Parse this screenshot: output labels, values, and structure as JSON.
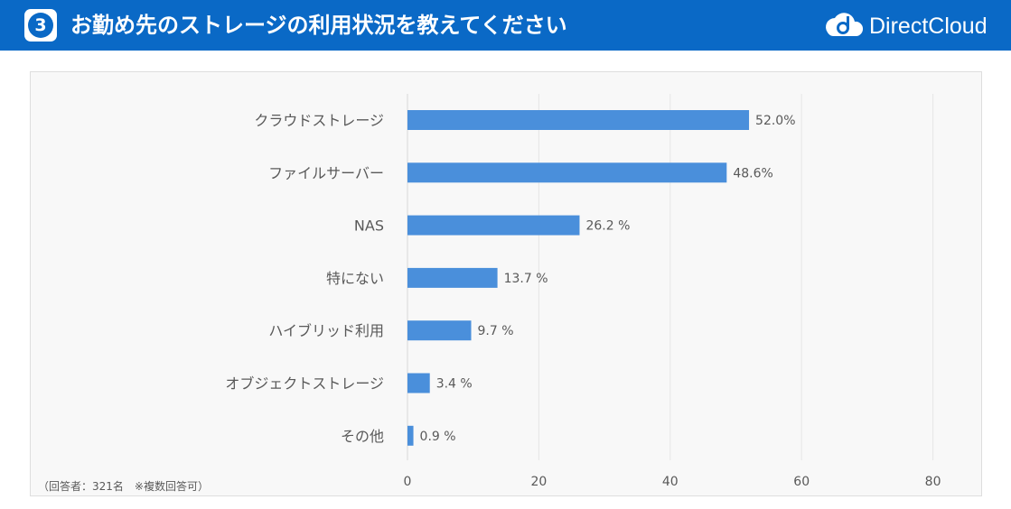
{
  "header": {
    "question_number": "3",
    "title": "お勤め先のストレージの利用状況を教えてください",
    "logo_text": "DirectCloud",
    "logo_icon": "cloud-d-logo-icon",
    "background_color": "#0a69c6"
  },
  "note": "（回答者：321名　※複数回答可）",
  "chart_data": {
    "type": "bar",
    "orientation": "horizontal",
    "title": "",
    "xlabel": "",
    "ylabel": "",
    "categories": [
      "クラウドストレージ",
      "ファイルサーバー",
      "NAS",
      "特にない",
      "ハイブリッド利用",
      "オブジェクトストレージ",
      "その他"
    ],
    "values": [
      52.0,
      48.6,
      26.2,
      13.7,
      9.7,
      3.4,
      0.9
    ],
    "data_labels": [
      "52.0%",
      "48.6%",
      "26.2 %",
      "13.7 %",
      "9.7 %",
      "3.4 %",
      "0.9 %"
    ],
    "xlim": [
      0,
      80
    ],
    "ticks": [
      0,
      20,
      40,
      60,
      80
    ],
    "tick_labels": [
      "0",
      "20",
      "40",
      "60",
      "80"
    ],
    "grid": true,
    "bar_color": "#4a8fdb"
  }
}
